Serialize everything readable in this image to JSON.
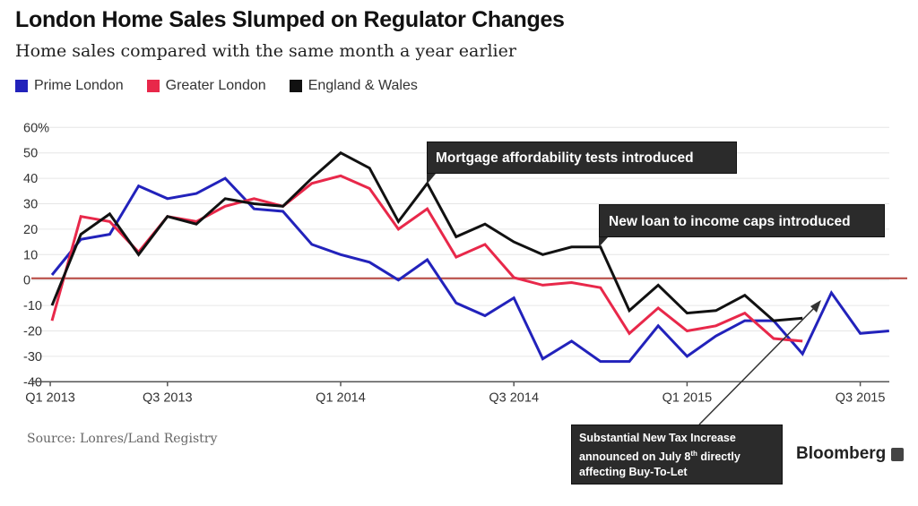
{
  "chart_data": {
    "type": "line",
    "title": "London Home Sales Slumped on Regulator Changes",
    "subtitle": "Home sales compared with the same month a year earlier",
    "xlabel": "",
    "ylabel": "",
    "ylim": [
      -40,
      60
    ],
    "y_ticks": [
      "60%",
      "50",
      "40",
      "30",
      "20",
      "10",
      "0",
      "-10",
      "-20",
      "-30",
      "-40"
    ],
    "y_tick_values": [
      60,
      50,
      40,
      30,
      20,
      10,
      0,
      -10,
      -20,
      -30,
      -40
    ],
    "x_ticks": [
      "Q1 2013",
      "Q3 2013",
      "Q1 2014",
      "Q3 2014",
      "Q1 2015",
      "Q3 2015"
    ],
    "grid": true,
    "legend_position": "top-left",
    "series": [
      {
        "name": "Prime London",
        "color": "#2222bb",
        "values": [
          2,
          16,
          18,
          37,
          32,
          34,
          40,
          28,
          27,
          14,
          10,
          7,
          0,
          8,
          -9,
          -14,
          -7,
          -31,
          -24,
          -32,
          -32,
          -18,
          -30,
          -22,
          -16,
          -16,
          -29,
          -5,
          -21,
          -20
        ]
      },
      {
        "name": "Greater London",
        "color": "#e8284a",
        "values": [
          -16,
          25,
          23,
          11,
          25,
          23,
          29,
          32,
          29,
          38,
          41,
          36,
          20,
          28,
          9,
          14,
          1,
          -2,
          -1,
          -3,
          -21,
          -11,
          -20,
          -18,
          -13,
          -23,
          -24
        ]
      },
      {
        "name": "England & Wales",
        "color": "#111111",
        "values": [
          -10,
          18,
          26,
          10,
          25,
          22,
          32,
          30,
          29,
          40,
          50,
          44,
          23,
          38,
          17,
          22,
          15,
          10,
          13,
          13,
          -12,
          -2,
          -13,
          -12,
          -6,
          -16,
          -15
        ]
      }
    ],
    "reference_line": {
      "value": 0,
      "color": "#b5453e"
    },
    "annotations": [
      "Mortgage affordability tests introduced",
      "New loan to income caps introduced"
    ]
  },
  "notes": {
    "tax_line1": "Substantial New Tax Increase",
    "tax_line2a": "announced on July 8",
    "tax_sup": "th",
    "tax_line2b": " directly",
    "tax_line3": "affecting Buy-To-Let"
  },
  "source": "Source: Lonres/Land Registry",
  "logo": "Bloomberg"
}
